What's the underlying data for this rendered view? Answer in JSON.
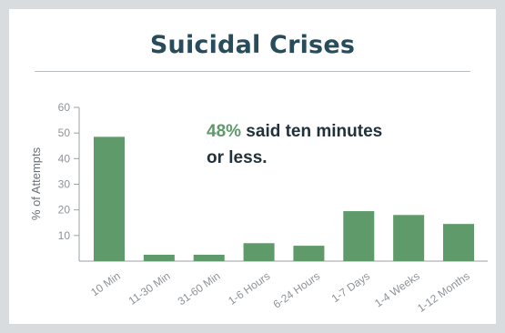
{
  "chart_data": {
    "type": "bar",
    "title": "Suicidal Crises",
    "ylabel": "% of Attempts",
    "xlabel": "",
    "categories": [
      "10 Min",
      "11-30 Min",
      "31-60 Min",
      "1-6 Hours",
      "6-24 Hours",
      "1-7 Days",
      "1-4 Weeks",
      "1-12 Months"
    ],
    "values": [
      48.5,
      2.5,
      2.5,
      7,
      6,
      19.5,
      18,
      14.5
    ],
    "ylim": [
      0,
      60
    ],
    "yticks": [
      10,
      20,
      30,
      40,
      50,
      60
    ],
    "bar_color": "#5e9a6a",
    "grid": false,
    "annotation": {
      "highlight": "48%",
      "line1_rest": " said ten minutes",
      "line2": "or less."
    }
  }
}
